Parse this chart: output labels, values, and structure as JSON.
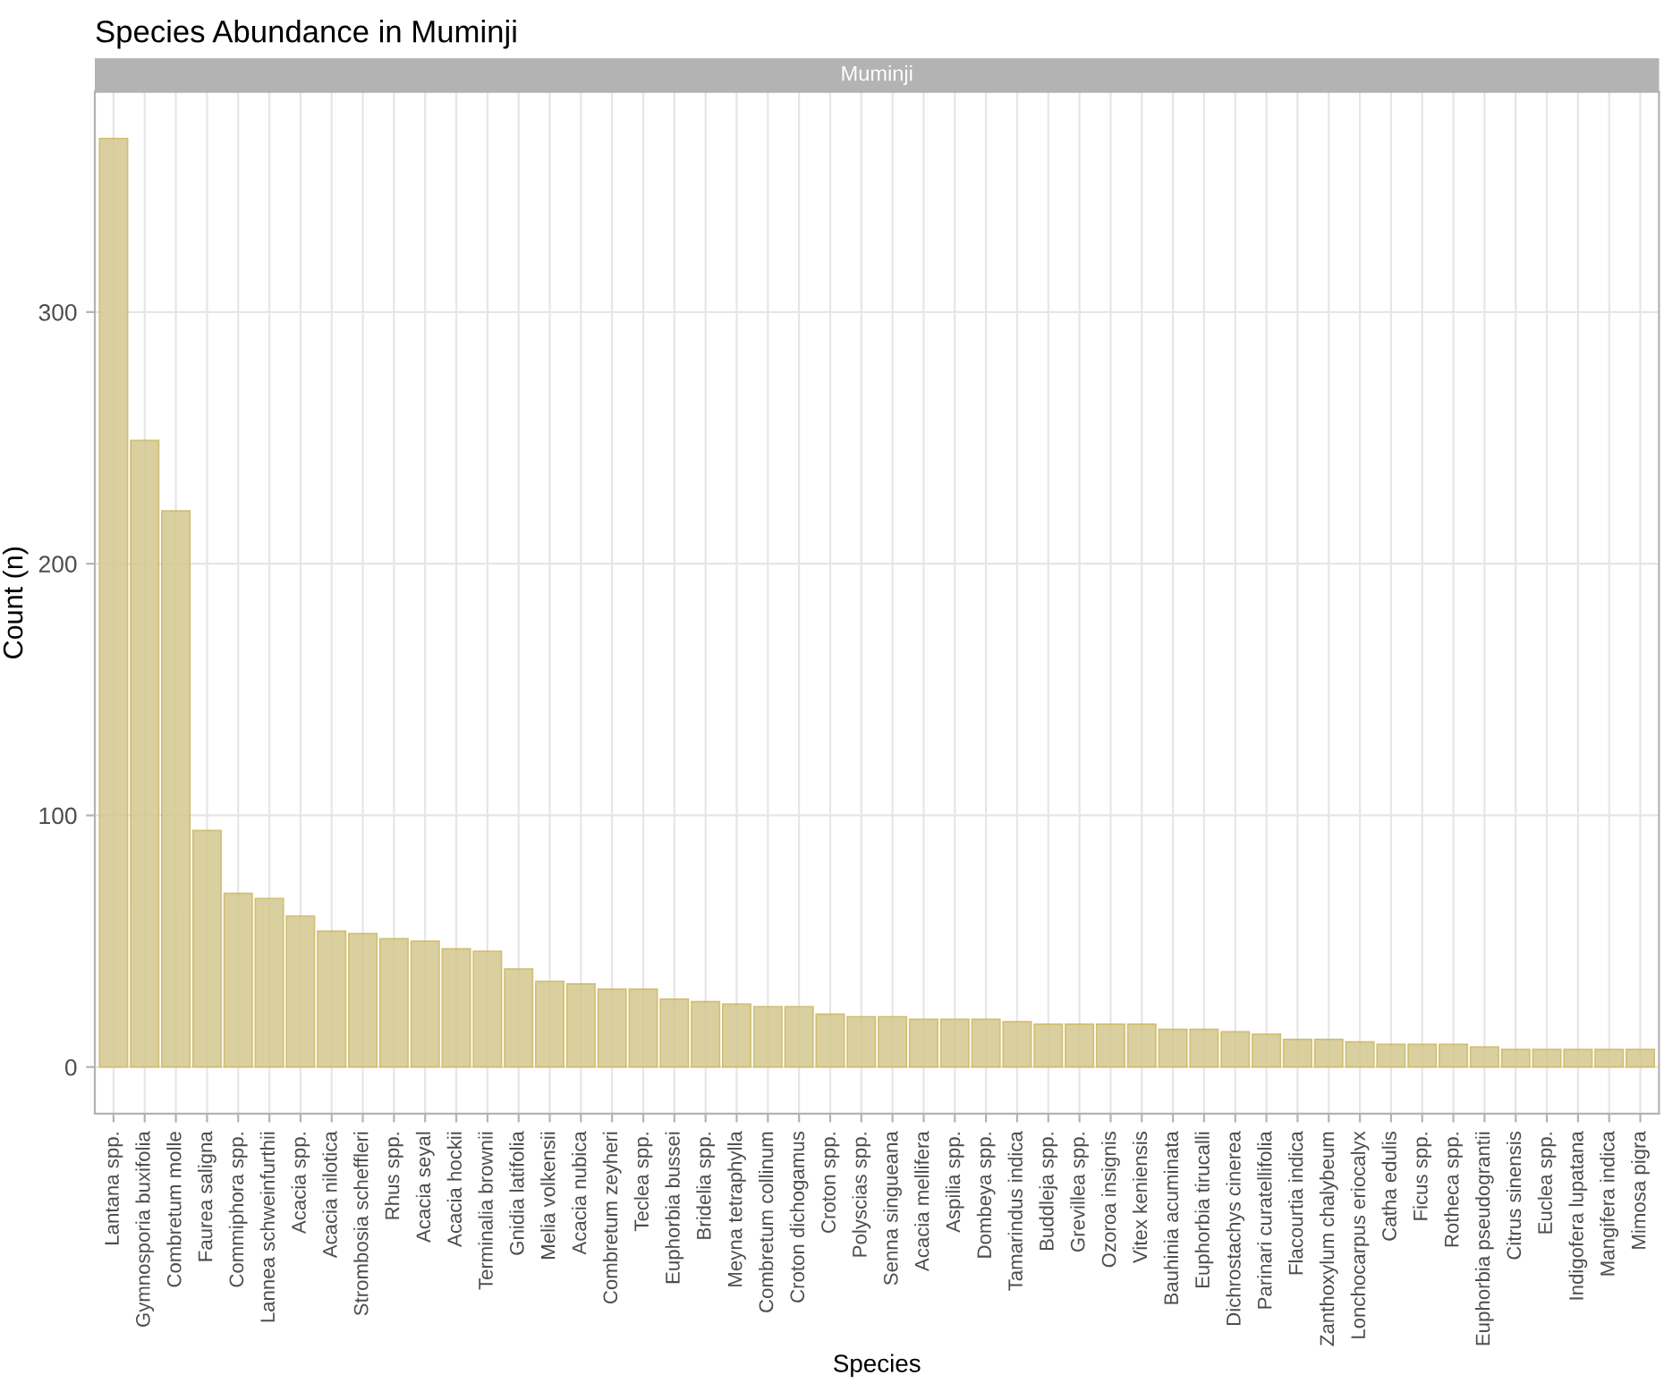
{
  "chart_data": {
    "type": "bar",
    "title": "Species Abundance in Muminji",
    "subtitle": "Muminji",
    "xlabel": "Species",
    "ylabel": "Count (n)",
    "categories": [
      "Lantana spp.",
      "Gymnosporia buxifolia",
      "Combretum molle",
      "Faurea saligna",
      "Commiphora spp.",
      "Lannea schweinfurthii",
      "Acacia spp.",
      "Acacia nilotica",
      "Strombosia scheffleri",
      "Rhus spp.",
      "Acacia seyal",
      "Acacia hockii",
      "Terminalia brownii",
      "Gnidia latifolia",
      "Melia volkensii",
      "Acacia nubica",
      "Combretum zeyheri",
      "Teclea spp.",
      "Euphorbia bussei",
      "Bridelia spp.",
      "Meyna tetraphylla",
      "Combretum collinum",
      "Croton dichogamus",
      "Croton spp.",
      "Polyscias spp.",
      "Senna singueana",
      "Acacia mellifera",
      "Aspilia spp.",
      "Dombeya spp.",
      "Tamarindus indica",
      "Buddleja spp.",
      "Grevillea spp.",
      "Ozoroa insignis",
      "Vitex keniensis",
      "Bauhinia acuminata",
      "Euphorbia tirucalli",
      "Dichrostachys cinerea",
      "Parinari curatellifolia",
      "Flacourtia indica",
      "Zanthoxylum chalybeum",
      "Lonchocarpus eriocalyx",
      "Catha edulis",
      "Ficus spp.",
      "Rotheca spp.",
      "Euphorbia pseudograntii",
      "Citrus sinensis",
      "Euclea spp.",
      "Indigofera lupatana",
      "Mangifera indica",
      "Mimosa pigra"
    ],
    "series": [
      {
        "color": "#d4c78e",
        "values": [
          369,
          249,
          221,
          94,
          69,
          67,
          60,
          54,
          53,
          51,
          50,
          47,
          46,
          39,
          34,
          33,
          31,
          31,
          27,
          26,
          25,
          24,
          24,
          21,
          20,
          20,
          19,
          19,
          19,
          18,
          17,
          17,
          17,
          17,
          15,
          15,
          14,
          13,
          11,
          11,
          10,
          9,
          9,
          9,
          8,
          7,
          7,
          7,
          7,
          7
        ]
      }
    ],
    "ylim": [
      -18.5,
      387.5
    ],
    "yticks": [
      0,
      100,
      200,
      300
    ],
    "grid": true
  }
}
